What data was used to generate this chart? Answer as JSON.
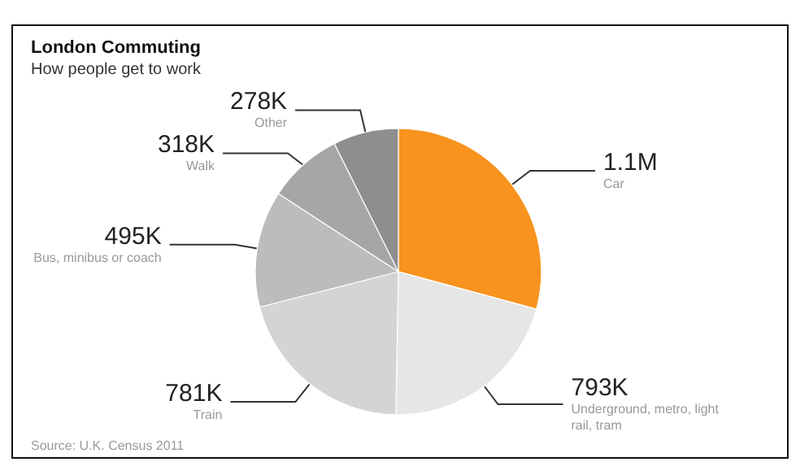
{
  "chart_data": {
    "type": "pie",
    "title": "London Commuting",
    "subtitle": "How people get to work",
    "categories": [
      "Car",
      "Underground, metro, light rail, tram",
      "Train",
      "Bus, minibus or coach",
      "Walk",
      "Other"
    ],
    "values": [
      1100000,
      793000,
      781000,
      495000,
      318000,
      278000
    ],
    "value_labels": [
      "1.1M",
      "793K",
      "781K",
      "495K",
      "318K",
      "278K"
    ],
    "colors": [
      "#f7931e",
      "#e6e6e6",
      "#d4d4d4",
      "#bcbcbc",
      "#a6a6a6",
      "#8e8e8e"
    ],
    "annotations": [
      "Source: U.K. Census 2011"
    ],
    "legend": false
  }
}
